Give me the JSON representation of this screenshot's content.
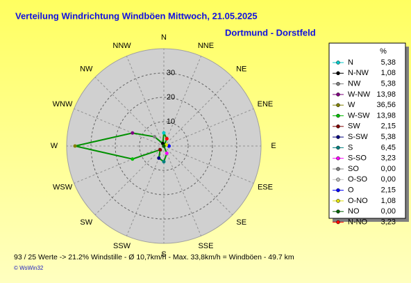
{
  "chart_data": {
    "type": "polar",
    "title": "Verteilung Windrichtung Windböen  Mittwoch, 21.05.2025",
    "subtitle": "Dortmund - Dorstfeld",
    "direction_labels": [
      "N",
      "NNE",
      "NE",
      "ENE",
      "E",
      "ESE",
      "SE",
      "SSE",
      "S",
      "SSW",
      "SW",
      "WSW",
      "W",
      "WNW",
      "NW",
      "NNW"
    ],
    "rlim": [
      0,
      40
    ],
    "rticks": [
      10,
      20,
      30
    ],
    "legend_header": "%",
    "line_color": "#009000",
    "categories": [
      "N",
      "N-NW",
      "NW",
      "W-NW",
      "W",
      "W-SW",
      "SW",
      "S-SW",
      "S",
      "S-SO",
      "SO",
      "O-SO",
      "O",
      "O-NO",
      "NO",
      "N-NO"
    ],
    "values": [
      5.38,
      1.08,
      5.38,
      13.98,
      36.56,
      13.98,
      2.15,
      5.38,
      6.45,
      3.23,
      0,
      0,
      2.15,
      1.08,
      0,
      3.23
    ],
    "value_labels": [
      "5,38",
      "1,08",
      "5,38",
      "13,98",
      "36,56",
      "13,98",
      "2,15",
      "5,38",
      "6,45",
      "3,23",
      "0,00",
      "0,00",
      "2,15",
      "1,08",
      "0,00",
      "3,23"
    ],
    "colors": [
      "#00c8c8",
      "#000000",
      "#808080",
      "#800080",
      "#808000",
      "#00c000",
      "#800000",
      "#000080",
      "#008080",
      "#ff00ff",
      "#808080",
      "#c0c0c0",
      "#0000ff",
      "#e0e000",
      "#006000",
      "#ff0000"
    ],
    "footer": "93 / 25 Werte  -> 21.2% Windstille    -    Ø 10,7km/h  -  Max. 33,8km/h = Windböen   -    49.7 km",
    "credit": "© WsWin32"
  }
}
